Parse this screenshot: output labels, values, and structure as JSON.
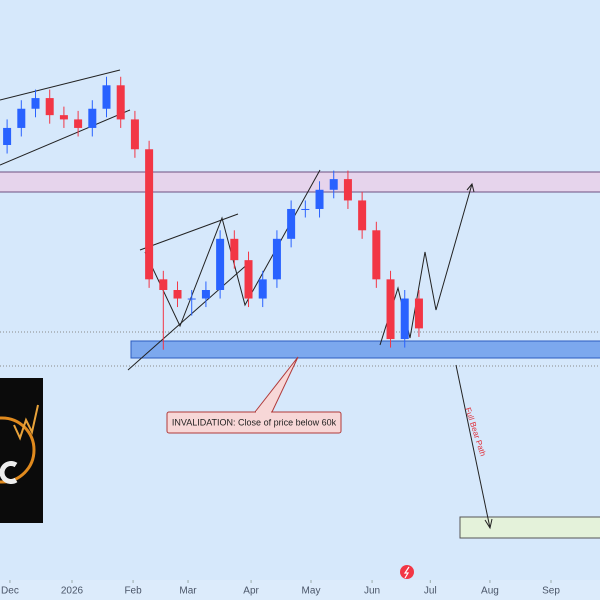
{
  "chart_data": {
    "type": "candlestick",
    "categories": [
      null,
      null,
      null,
      null,
      null,
      null,
      null,
      null,
      null,
      null,
      null,
      null,
      null,
      null,
      null,
      null,
      null,
      null,
      null,
      null,
      null,
      null,
      null,
      null,
      null,
      null,
      null,
      null,
      null,
      null
    ],
    "open": [
      108,
      112,
      116.5,
      119,
      115,
      114,
      112,
      116.5,
      122,
      114,
      107,
      76.5,
      74,
      72,
      72,
      74,
      86,
      81,
      72,
      76.5,
      86,
      93,
      93,
      97.5,
      100,
      95,
      88,
      76.5,
      62.5,
      72
    ],
    "high": [
      114,
      118.5,
      121,
      121,
      117,
      116,
      118.5,
      124,
      124,
      116,
      109,
      78.5,
      76,
      74,
      76,
      88,
      88,
      83,
      78.5,
      88,
      95,
      95,
      99.5,
      102,
      102,
      97,
      90,
      78.5,
      74,
      74
    ],
    "low": [
      106,
      110,
      114.5,
      113,
      112,
      110,
      110,
      114.5,
      112,
      105,
      74.5,
      60,
      70,
      68,
      70,
      72,
      79,
      70,
      70,
      74.5,
      84,
      91,
      91,
      95.5,
      93,
      86,
      74.5,
      60.5,
      60.5,
      63
    ],
    "close": [
      112,
      116.5,
      119,
      115,
      114,
      112,
      116.5,
      122,
      114,
      107,
      76.5,
      74,
      72,
      72,
      74,
      86,
      81,
      72,
      76.5,
      86,
      93,
      93,
      97.5,
      100,
      95,
      88,
      76.5,
      62.5,
      72,
      65
    ],
    "up_color": "#2962ff",
    "down_color": "#f23645",
    "xlim": [
      0,
      42.25
    ],
    "xticks": [
      {
        "value": 0.7,
        "label": "Dec"
      },
      {
        "value": 5.07,
        "label": "2026"
      },
      {
        "value": 9.37,
        "label": "Feb"
      },
      {
        "value": 13.24,
        "label": "Mar"
      },
      {
        "value": 17.68,
        "label": "Apr"
      },
      {
        "value": 21.9,
        "label": "May"
      },
      {
        "value": 26.2,
        "label": "Jun"
      },
      {
        "value": 30.3,
        "label": "Jul"
      },
      {
        "value": 34.5,
        "label": "Aug"
      },
      {
        "value": 38.8,
        "label": "Sep"
      }
    ],
    "ylim": [
      6,
      142
    ],
    "annotations": [
      "INVALIDATION: Close of price below 60k",
      "Full Bear Path"
    ]
  }
}
